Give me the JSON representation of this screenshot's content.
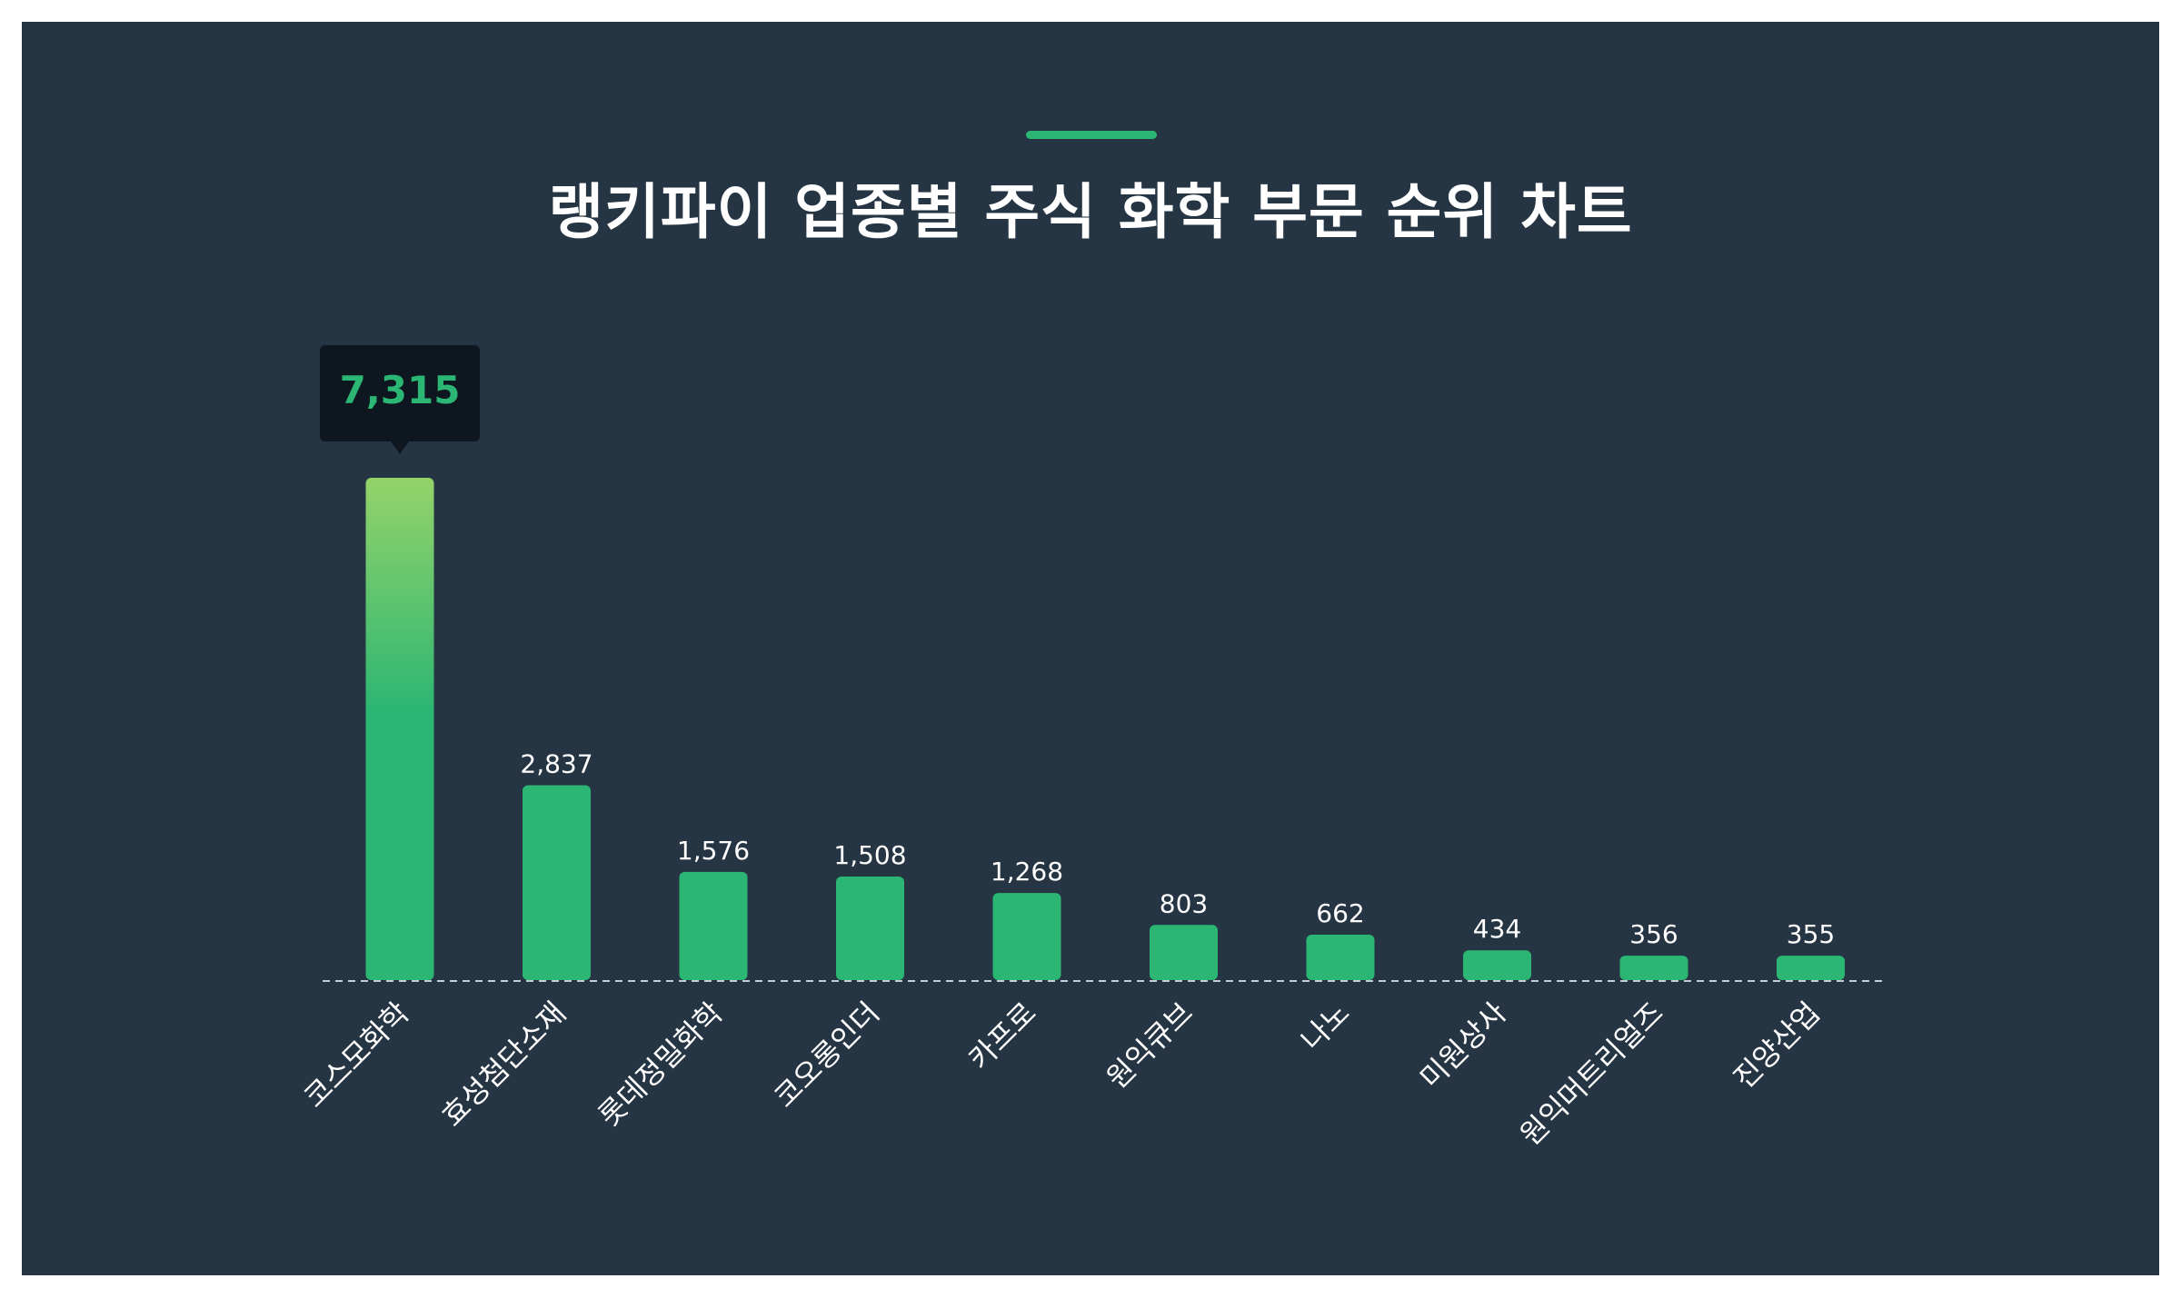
{
  "title": "랭키파이 업종별 주식 화학 부문 순위 차트",
  "colors": {
    "background": "#263543",
    "accent": "#2bb673",
    "bar": "#2bb673",
    "bar_highlight_top": "#94d36a",
    "tooltip_bg": "#0e1720",
    "tooltip_text": "#2bb673",
    "baseline": "#c5ccd3"
  },
  "tooltip": {
    "category": "코스모화학",
    "value_label": "7,315"
  },
  "chart_data": {
    "type": "bar",
    "title": "랭키파이 업종별 주식 화학 부문 순위 차트",
    "xlabel": "",
    "ylabel": "",
    "grid": false,
    "categories": [
      "코스모화학",
      "효성첨단소재",
      "롯데정밀화학",
      "코오롱인더",
      "카프로",
      "원익큐브",
      "나노",
      "미원상사",
      "원익머트리얼즈",
      "진양산업"
    ],
    "values": [
      7315,
      2837,
      1576,
      1508,
      1268,
      803,
      662,
      434,
      356,
      355
    ],
    "value_labels": [
      "7,315",
      "2,837",
      "1,576",
      "1,508",
      "1,268",
      "803",
      "662",
      "434",
      "356",
      "355"
    ],
    "ylim": [
      0,
      7315
    ]
  }
}
